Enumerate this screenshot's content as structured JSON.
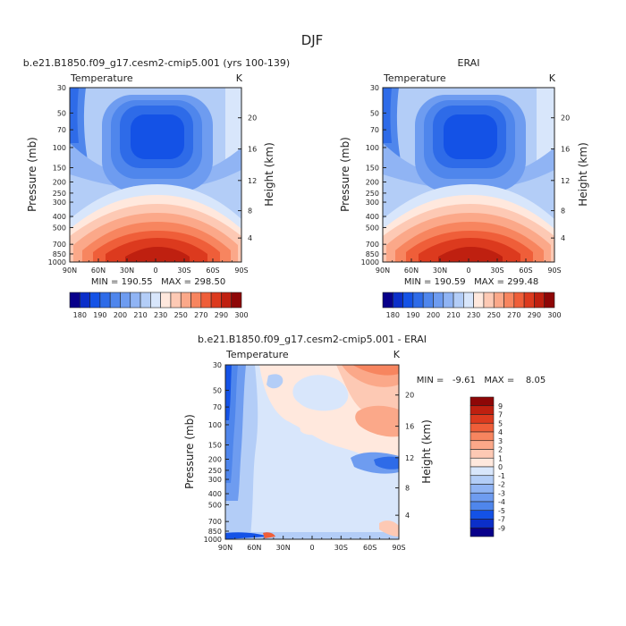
{
  "figure": {
    "title": "DJF"
  },
  "chart_data": [
    {
      "type": "heatmap",
      "title": "b.e21.B1850.f09_g17.cesm2-cmip5.001 (yrs 100-139)",
      "subtitle_left": "Temperature",
      "subtitle_right": "K",
      "ylabel": "Pressure (mb)",
      "ylabel_right": "Height (km)",
      "x_ticks": [
        "90N",
        "60N",
        "30N",
        "0",
        "30S",
        "60S",
        "90S"
      ],
      "y_ticks": [
        "30",
        "50",
        "70",
        "100",
        "150",
        "200",
        "250",
        "300",
        "400",
        "500",
        "700",
        "850",
        "1000"
      ],
      "y_right_ticks": [
        "20",
        "16",
        "12",
        "8",
        "4"
      ],
      "stats": "MIN = 190.55   MAX = 298.50",
      "colorbar_labels": [
        "180",
        "190",
        "200",
        "210",
        "230",
        "250",
        "270",
        "290",
        "300"
      ],
      "colorbar_colors": [
        "#08008a",
        "#0b2fc9",
        "#1452e6",
        "#2e6be8",
        "#4f86ec",
        "#6e9cf0",
        "#90b4f4",
        "#b3cdf7",
        "#d8e6fb",
        "#ffe8dd",
        "#fdc9b4",
        "#fba889",
        "#f7855f",
        "#ef5e39",
        "#dc3a1e",
        "#bf2010",
        "#8e0707"
      ],
      "grid": false
    },
    {
      "type": "heatmap",
      "title": "ERAI",
      "subtitle_left": "Temperature",
      "subtitle_right": "K",
      "ylabel": "Pressure (mb)",
      "ylabel_right": "Height (km)",
      "x_ticks": [
        "90N",
        "60N",
        "30N",
        "0",
        "30S",
        "60S",
        "90S"
      ],
      "y_ticks": [
        "30",
        "50",
        "70",
        "100",
        "150",
        "200",
        "250",
        "300",
        "400",
        "500",
        "700",
        "850",
        "1000"
      ],
      "y_right_ticks": [
        "20",
        "16",
        "12",
        "8",
        "4"
      ],
      "stats": "MIN = 190.59   MAX = 299.48",
      "colorbar_labels": [
        "180",
        "190",
        "200",
        "210",
        "230",
        "250",
        "270",
        "290",
        "300"
      ],
      "colorbar_colors": [
        "#08008a",
        "#0b2fc9",
        "#1452e6",
        "#2e6be8",
        "#4f86ec",
        "#6e9cf0",
        "#90b4f4",
        "#b3cdf7",
        "#d8e6fb",
        "#ffe8dd",
        "#fdc9b4",
        "#fba889",
        "#f7855f",
        "#ef5e39",
        "#dc3a1e",
        "#bf2010",
        "#8e0707"
      ],
      "grid": false
    },
    {
      "type": "heatmap",
      "title": "b.e21.B1850.f09_g17.cesm2-cmip5.001 - ERAI",
      "subtitle_left": "Temperature",
      "subtitle_right": "K",
      "ylabel": "Pressure (mb)",
      "ylabel_right": "Height (km)",
      "x_ticks": [
        "90N",
        "60N",
        "30N",
        "0",
        "30S",
        "60S",
        "90S"
      ],
      "y_ticks": [
        "30",
        "50",
        "70",
        "100",
        "150",
        "200",
        "250",
        "300",
        "400",
        "500",
        "700",
        "850",
        "1000"
      ],
      "y_right_ticks": [
        "20",
        "16",
        "12",
        "8",
        "4"
      ],
      "stats": "MIN =   -9.61   MAX =    8.05",
      "colorbar_labels": [
        "9",
        "7",
        "5",
        "4",
        "3",
        "2",
        "1",
        "0",
        "-1",
        "-2",
        "-3",
        "-4",
        "-5",
        "-7",
        "-9"
      ],
      "colorbar_colors": [
        "#8e0707",
        "#bf2010",
        "#dc3a1e",
        "#ef5e39",
        "#f7855f",
        "#fba889",
        "#fdc9b4",
        "#ffe8dd",
        "#d8e6fb",
        "#b3cdf7",
        "#90b4f4",
        "#6e9cf0",
        "#4f86ec",
        "#1452e6",
        "#0b2fc9",
        "#08008a"
      ],
      "grid": false
    }
  ]
}
